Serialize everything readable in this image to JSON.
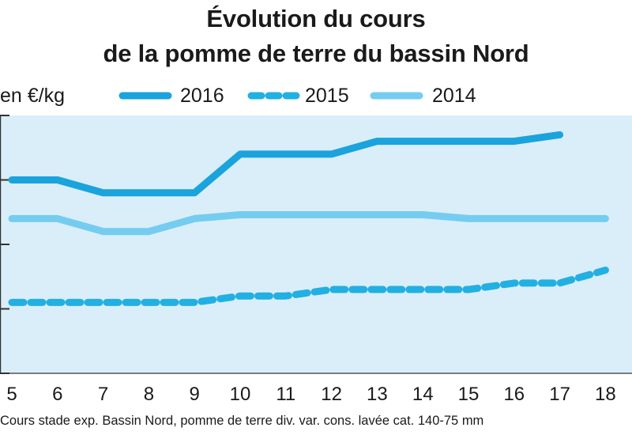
{
  "chart_data": {
    "type": "line",
    "title": [
      "Évolution du cours",
      "de la pomme de terre du bassin Nord"
    ],
    "ylabel": "en €/kg",
    "categories": [
      "5",
      "6",
      "7",
      "8",
      "9",
      "10",
      "11",
      "12",
      "13",
      "14",
      "15",
      "16",
      "17",
      "18"
    ],
    "series": [
      {
        "name": "2016",
        "style": "solid-thick",
        "color": "#1aa3dc",
        "values": [
          0.4,
          0.4,
          0.39,
          0.39,
          0.39,
          0.42,
          0.42,
          0.42,
          0.43,
          0.43,
          0.43,
          0.43,
          0.435,
          null
        ]
      },
      {
        "name": "2015",
        "style": "dashed",
        "color": "#22b0e2",
        "values": [
          0.305,
          0.305,
          0.305,
          0.305,
          0.305,
          0.31,
          0.31,
          0.315,
          0.315,
          0.315,
          0.315,
          0.32,
          0.32,
          0.33
        ]
      },
      {
        "name": "2014",
        "style": "solid-light",
        "color": "#74cdf0",
        "values": [
          0.37,
          0.37,
          0.36,
          0.36,
          0.37,
          0.373,
          0.373,
          0.373,
          0.373,
          0.373,
          0.37,
          0.37,
          0.37,
          0.37
        ]
      }
    ],
    "ylim": [
      0.25,
      0.45
    ],
    "grid": false,
    "legend": "top",
    "caption": "Cours stade exp. Bassin Nord, pomme de terre div. var. cons. lavée cat. 140-75 mm"
  },
  "colors": {
    "plot_background": "#daeef9",
    "axis": "#333333"
  }
}
